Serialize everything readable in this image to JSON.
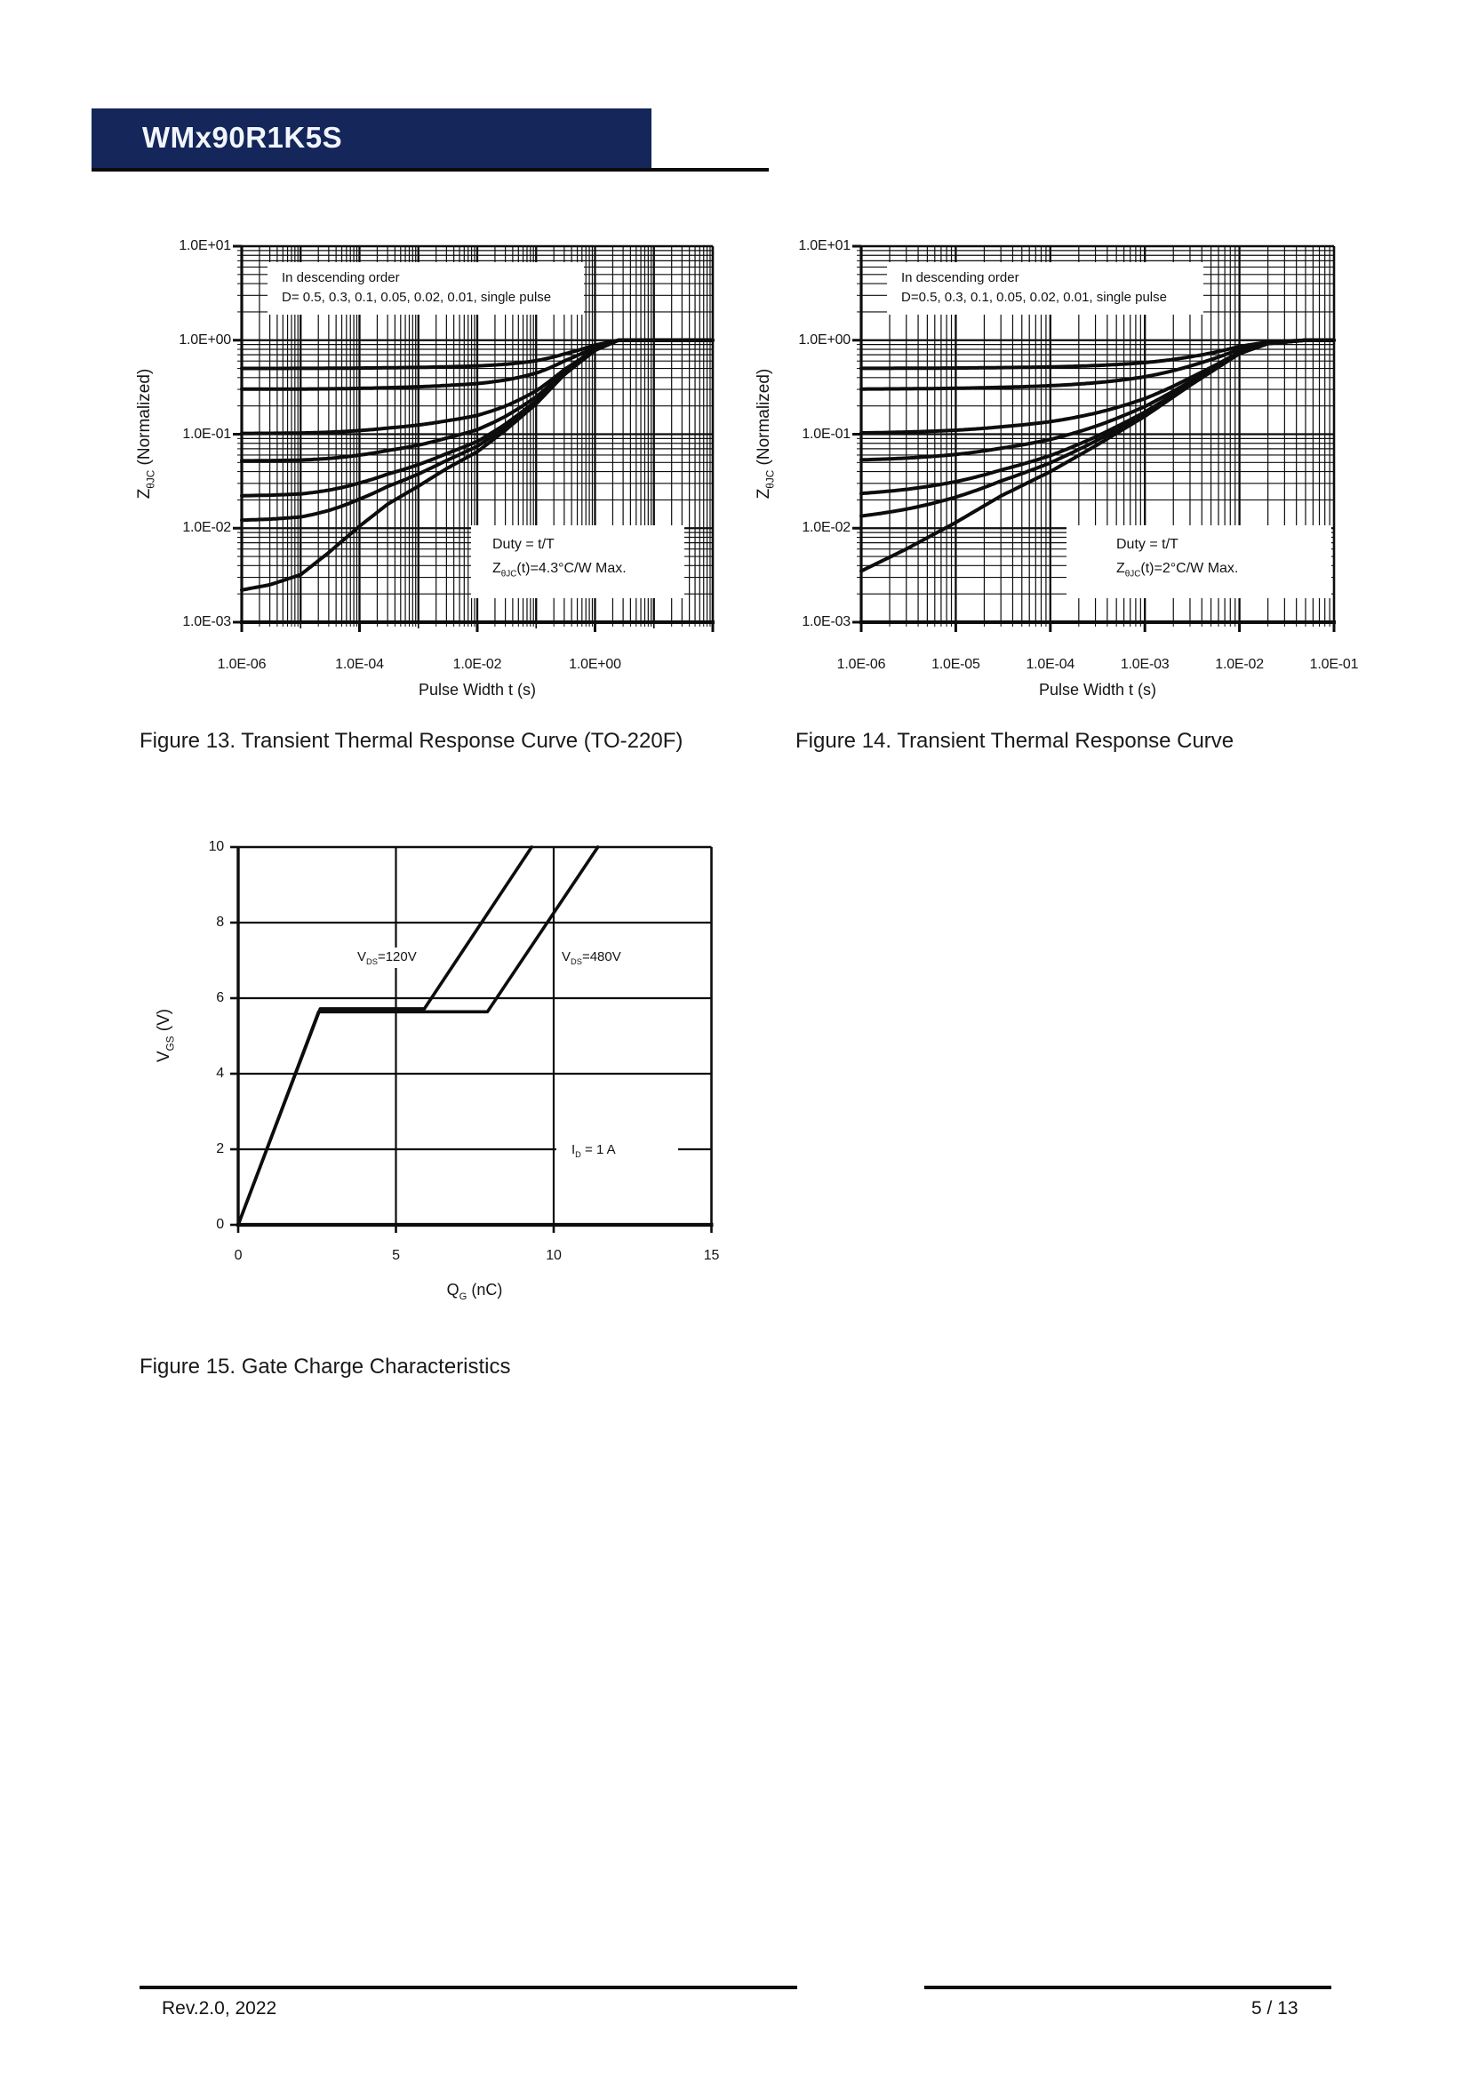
{
  "header": {
    "title": "WMx90R1K5S"
  },
  "figures": {
    "fig13": {
      "caption": "Figure 13. Transient Thermal Response Curve (TO-220F)",
      "xlabel": "Pulse Width t (s)",
      "ylabel": {
        "base": "Z",
        "sub": "θJC",
        "rest": " (Normalized)"
      },
      "legend_line1": "In descending order",
      "legend_line2": "D= 0.5, 0.3, 0.1, 0.05, 0.02, 0.01, single pulse",
      "note_line1": "Duty = t/T",
      "note_z": {
        "base": "Z",
        "sub": "θJC",
        "rest": "(t)=4.3°C/W Max."
      }
    },
    "fig14": {
      "caption": "Figure 14. Transient Thermal Response Curve",
      "xlabel": "Pulse Width t (s)",
      "ylabel": {
        "base": "Z",
        "sub": "θJC",
        "rest": " (Normalized)"
      },
      "legend_line1": "In descending order",
      "legend_line2": "D=0.5, 0.3, 0.1, 0.05, 0.02, 0.01, single pulse",
      "note_line1": "Duty = t/T",
      "note_z": {
        "base": "Z",
        "sub": "θJC",
        "rest": "(t)=2°C/W Max."
      }
    },
    "fig15": {
      "caption": "Figure 15. Gate Charge Characteristics",
      "xlabel": {
        "base": "Q",
        "sub": "G",
        "rest": " (nC)"
      },
      "ylabel": {
        "base": "V",
        "sub": "GS",
        "rest": " (V)"
      },
      "vds120": {
        "base": "V",
        "sub": "DS",
        "rest": "=120V"
      },
      "vds480": {
        "base": "V",
        "sub": "DS",
        "rest": "=480V"
      },
      "id_label": {
        "base": "I",
        "sub": "D",
        "rest": " = 1 A"
      }
    }
  },
  "footer": {
    "left": "Rev.2.0, 2022",
    "right": "5 / 13"
  },
  "chart_data": [
    {
      "id": "fig13",
      "type": "line",
      "title": "Transient Thermal Response Curve (TO-220F)",
      "xlabel": "Pulse Width t (s)",
      "ylabel": "ZθJC (Normalized)",
      "xscale": "log",
      "yscale": "log",
      "xlim": [
        1e-06,
        100.0
      ],
      "ylim": [
        0.001,
        10.0
      ],
      "x_tick_values": [
        1e-06,
        0.0001,
        0.01,
        1.0
      ],
      "x_tick_labels": [
        "1.0E-06",
        "1.0E-04",
        "1.0E-02",
        "1.0E+00"
      ],
      "x_tick_marks": [
        1e-06,
        0.0001,
        0.01,
        1.0,
        100.0
      ],
      "y_tick_values": [
        10.0,
        1.0,
        0.1,
        0.01,
        0.001
      ],
      "y_tick_labels": [
        "1.0E+01",
        "1.0E+00",
        "1.0E-01",
        "1.0E-02",
        "1.0E-03"
      ],
      "duty_values": [
        0.5,
        0.3,
        0.1,
        0.05,
        0.02,
        0.01
      ],
      "single_pulse": {
        "t": [
          1e-06,
          3e-06,
          1e-05,
          3e-05,
          0.0001,
          0.0003,
          0.001,
          0.003,
          0.01,
          0.03,
          0.1,
          0.3,
          1.0,
          2.5,
          100.0
        ],
        "z": [
          0.0022,
          0.0025,
          0.0032,
          0.0055,
          0.0105,
          0.018,
          0.028,
          0.043,
          0.065,
          0.11,
          0.21,
          0.43,
          0.78,
          1.0,
          1.0
        ]
      },
      "annotations": [
        "In descending order",
        "D= 0.5, 0.3, 0.1, 0.05, 0.02, 0.01, single pulse",
        "Duty = t/T",
        "ZθJC(t)=4.3°C/W Max."
      ]
    },
    {
      "id": "fig14",
      "type": "line",
      "title": "Transient Thermal Response Curve",
      "xlabel": "Pulse Width t (s)",
      "ylabel": "ZθJC (Normalized)",
      "xscale": "log",
      "yscale": "log",
      "xlim": [
        1e-06,
        0.1
      ],
      "ylim": [
        0.001,
        10.0
      ],
      "x_tick_values": [
        1e-06,
        1e-05,
        0.0001,
        0.001,
        0.01,
        0.1
      ],
      "x_tick_labels": [
        "1.0E-06",
        "1.0E-05",
        "1.0E-04",
        "1.0E-03",
        "1.0E-02",
        "1.0E-01"
      ],
      "x_tick_marks": [
        1e-06,
        1e-05,
        0.0001,
        0.001,
        0.01,
        0.1
      ],
      "y_tick_values": [
        10.0,
        1.0,
        0.1,
        0.01,
        0.001
      ],
      "y_tick_labels": [
        "1.0E+01",
        "1.0E+00",
        "1.0E-01",
        "1.0E-02",
        "1.0E-03"
      ],
      "duty_values": [
        0.5,
        0.3,
        0.1,
        0.05,
        0.02,
        0.01
      ],
      "single_pulse": {
        "t": [
          1e-06,
          3e-06,
          1e-05,
          3e-05,
          0.0001,
          0.0003,
          0.001,
          0.003,
          0.01,
          0.02,
          0.05,
          0.1
        ],
        "z": [
          0.0035,
          0.006,
          0.0115,
          0.022,
          0.04,
          0.075,
          0.155,
          0.33,
          0.72,
          0.92,
          1.0,
          1.0
        ]
      },
      "annotations": [
        "In descending order",
        "D=0.5, 0.3, 0.1, 0.05, 0.02, 0.01, single pulse",
        "Duty = t/T",
        "ZθJC(t)=2°C/W Max."
      ]
    },
    {
      "id": "fig15",
      "type": "line",
      "title": "Gate Charge Characteristics",
      "xlabel": "QG (nC)",
      "ylabel": "VGS (V)",
      "xlim": [
        0,
        15
      ],
      "ylim": [
        0,
        10
      ],
      "x_tick_values": [
        0,
        5,
        10,
        15
      ],
      "y_tick_values": [
        0,
        2,
        4,
        6,
        8,
        10
      ],
      "series": [
        {
          "name": "VDS=120V",
          "points": [
            [
              0,
              0
            ],
            [
              2.6,
              5.72
            ],
            [
              5.9,
              5.72
            ],
            [
              9.3,
              10
            ]
          ]
        },
        {
          "name": "VDS=480V",
          "points": [
            [
              0,
              0
            ],
            [
              2.55,
              5.64
            ],
            [
              7.9,
              5.64
            ],
            [
              11.4,
              10
            ]
          ]
        }
      ],
      "annotations": [
        "VDS=120V",
        "VDS=480V",
        "ID = 1 A"
      ]
    }
  ]
}
